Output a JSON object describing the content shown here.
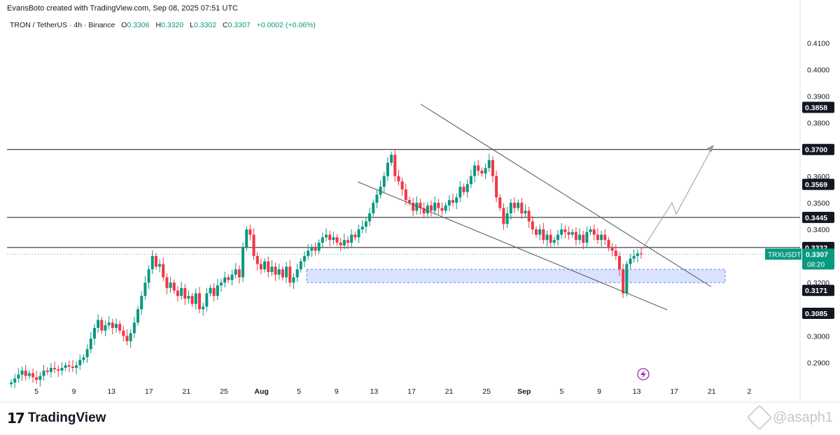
{
  "header": {
    "credit": "EvansBoto created with TradingView.com, Sep 08, 2025 07:51 UTC",
    "symbol": "TRON / TetherUS · 4h · Binance",
    "open_label": "O",
    "open": "0.3306",
    "high_label": "H",
    "high": "0.3320",
    "low_label": "L",
    "low": "0.3302",
    "close_label": "C",
    "close": "0.3307",
    "change": "+0.0002 (+0.06%)"
  },
  "footer": {
    "logo_text": "TradingView",
    "watermark": "@asaph1"
  },
  "colors": {
    "up": "#089981",
    "down": "#f23645",
    "zone_fill": "#c9d6ff",
    "zone_border": "#2962ff",
    "line": "#131722",
    "trend": "#555555",
    "label_bg": "#131722"
  },
  "chart_data": {
    "type": "candlestick",
    "symbol_tag": "TRXUSDT",
    "last_price": "0.3307",
    "countdown": "08:20",
    "ylim": [
      0.2825,
      0.4135
    ],
    "y_ticks": [
      "0.4100",
      "0.4000",
      "0.3900",
      "0.3800",
      "0.3600",
      "0.3500",
      "0.3400",
      "0.3200",
      "0.3000",
      "0.2900"
    ],
    "x_ticks": [
      "5",
      "9",
      "13",
      "17",
      "21",
      "25",
      "Aug",
      "5",
      "9",
      "13",
      "17",
      "21",
      "25",
      "Sep",
      "5",
      "9",
      "13",
      "17",
      "21",
      "2"
    ],
    "price_levels": [
      {
        "label": "0.3858",
        "value": 0.3858,
        "line": false
      },
      {
        "label": "0.3700",
        "value": 0.37,
        "line": true
      },
      {
        "label": "0.3569",
        "value": 0.3569,
        "line": false
      },
      {
        "label": "0.3445",
        "value": 0.3445,
        "line": true
      },
      {
        "label": "0.3332",
        "value": 0.3332,
        "line": true
      },
      {
        "label": "0.3171",
        "value": 0.3171,
        "line": false
      },
      {
        "label": "0.3085",
        "value": 0.3085,
        "line": false
      }
    ],
    "zone": {
      "top": 0.325,
      "bottom": 0.32
    },
    "closes": [
      0.2825,
      0.284,
      0.2855,
      0.287,
      0.285,
      0.286,
      0.2845,
      0.2835,
      0.285,
      0.287,
      0.2865,
      0.288,
      0.2875,
      0.287,
      0.288,
      0.289,
      0.2885,
      0.288,
      0.289,
      0.291,
      0.292,
      0.295,
      0.299,
      0.303,
      0.306,
      0.302,
      0.304,
      0.305,
      0.303,
      0.3045,
      0.302,
      0.3,
      0.298,
      0.301,
      0.305,
      0.31,
      0.315,
      0.32,
      0.325,
      0.33,
      0.326,
      0.327,
      0.322,
      0.318,
      0.32,
      0.317,
      0.315,
      0.318,
      0.314,
      0.315,
      0.312,
      0.316,
      0.31,
      0.311,
      0.316,
      0.318,
      0.315,
      0.319,
      0.32,
      0.322,
      0.321,
      0.323,
      0.325,
      0.322,
      0.333,
      0.34,
      0.338,
      0.33,
      0.327,
      0.325,
      0.328,
      0.324,
      0.326,
      0.323,
      0.325,
      0.322,
      0.326,
      0.32,
      0.322,
      0.325,
      0.328,
      0.33,
      0.332,
      0.333,
      0.332,
      0.335,
      0.337,
      0.338,
      0.336,
      0.337,
      0.335,
      0.334,
      0.336,
      0.335,
      0.338,
      0.337,
      0.34,
      0.341,
      0.343,
      0.346,
      0.35,
      0.353,
      0.356,
      0.36,
      0.365,
      0.368,
      0.36,
      0.358,
      0.355,
      0.351,
      0.35,
      0.347,
      0.35,
      0.348,
      0.346,
      0.349,
      0.347,
      0.35,
      0.348,
      0.347,
      0.349,
      0.351,
      0.35,
      0.352,
      0.356,
      0.354,
      0.357,
      0.36,
      0.364,
      0.362,
      0.361,
      0.363,
      0.366,
      0.36,
      0.352,
      0.348,
      0.342,
      0.346,
      0.35,
      0.348,
      0.35,
      0.346,
      0.347,
      0.343,
      0.34,
      0.338,
      0.34,
      0.336,
      0.338,
      0.335,
      0.336,
      0.338,
      0.34,
      0.339,
      0.338,
      0.339,
      0.336,
      0.338,
      0.335,
      0.339,
      0.34,
      0.338,
      0.336,
      0.338,
      0.336,
      0.333,
      0.332,
      0.33,
      0.325,
      0.316,
      0.327,
      0.329,
      0.33,
      0.331,
      0.3307
    ]
  }
}
